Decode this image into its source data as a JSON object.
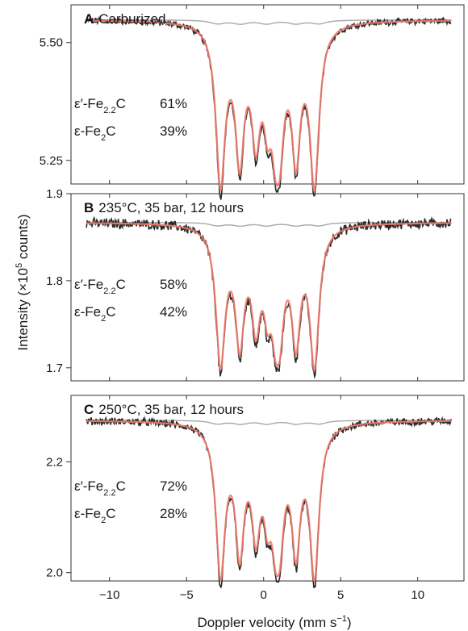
{
  "chart_data": [
    {
      "type": "line",
      "panel_letter": "A",
      "title": "Carburized",
      "ylim": [
        5.2,
        5.58
      ],
      "yticks": [
        5.25,
        5.5
      ],
      "ytick_labels": [
        "5.25",
        "5.50"
      ],
      "baseline": 5.548,
      "outer_depth": 0.325,
      "noise": 0.006,
      "subspectrum": "lorentzian doublets, small gray component near baseline",
      "phases": [
        {
          "name": "ε′-Fe2.2C",
          "name_parts": [
            "ε′-Fe",
            "2.2",
            "C"
          ],
          "percent": "61%"
        },
        {
          "name": "ε-Fe2C",
          "name_parts": [
            "ε-Fe",
            "2",
            "C"
          ],
          "percent": "39%"
        }
      ]
    },
    {
      "type": "line",
      "panel_letter": "B",
      "title": "235°C, 35 bar, 12 hours",
      "ylim": [
        1.685,
        1.9
      ],
      "yticks": [
        1.7,
        1.8,
        1.9
      ],
      "ytick_labels": [
        "1.7",
        "1.8",
        "1.9"
      ],
      "baseline": 1.867,
      "outer_depth": 0.152,
      "noise": 0.005,
      "phases": [
        {
          "name": "ε′-Fe2.2C",
          "name_parts": [
            "ε′-Fe",
            "2.2",
            "C"
          ],
          "percent": "58%"
        },
        {
          "name": "ε-Fe2C",
          "name_parts": [
            "ε-Fe",
            "2",
            "C"
          ],
          "percent": "42%"
        }
      ]
    },
    {
      "type": "line",
      "panel_letter": "C",
      "title": "250°C, 35 bar, 12 hours",
      "ylim": [
        1.985,
        2.32
      ],
      "yticks": [
        2.0,
        2.2
      ],
      "ytick_labels": [
        "2.0",
        "2.2"
      ],
      "baseline": 2.275,
      "outer_depth": 0.26,
      "noise": 0.006,
      "phases": [
        {
          "name": "ε′-Fe2.2C",
          "name_parts": [
            "ε′-Fe",
            "2.2",
            "C"
          ],
          "percent": "72%"
        },
        {
          "name": "ε-Fe2C",
          "name_parts": [
            "ε-Fe",
            "2",
            "C"
          ],
          "percent": "28%"
        }
      ]
    }
  ],
  "shared_axes": {
    "xlim": [
      -12.5,
      13
    ],
    "xticks": [
      -10,
      -5,
      0,
      5,
      10
    ],
    "xtick_labels": [
      "−10",
      "−5",
      "0",
      "5",
      "10"
    ],
    "xlabel": "Doppler velocity (mm s−1)",
    "xlabel_parts": [
      "Doppler velocity (mm s",
      "−1",
      ")"
    ],
    "ylabel": "Intensity (×105 counts)",
    "ylabel_parts": [
      "Intensity (×10",
      "5",
      " counts)"
    ],
    "data_range": [
      -11.5,
      12.2
    ]
  },
  "series_styles": {
    "measured": "#2b2b2b",
    "fit": "#f07a6a",
    "subspectrum": "#a8a8a8"
  }
}
